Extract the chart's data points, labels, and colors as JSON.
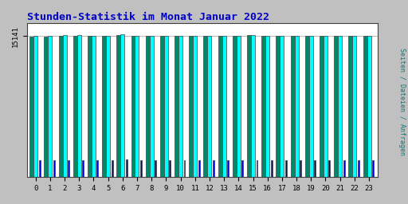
{
  "title": "Stunden-Statistik im Monat Januar 2022",
  "title_color": "#0000cc",
  "title_fontsize": 9.5,
  "ylabel": "Seiten / Dateien / Anfragen",
  "ylabel_color": "#008080",
  "background_color": "#c0c0c0",
  "plot_bg_color": "#ffffff",
  "hours": [
    0,
    1,
    2,
    3,
    4,
    5,
    6,
    7,
    8,
    9,
    10,
    11,
    12,
    13,
    14,
    15,
    16,
    17,
    18,
    19,
    20,
    21,
    22,
    23
  ],
  "seiten": [
    15141,
    15141,
    15200,
    15200,
    15170,
    15160,
    15280,
    15160,
    15160,
    15140,
    15160,
    15155,
    15155,
    15165,
    15170,
    15260,
    15155,
    15160,
    15185,
    15185,
    15185,
    15175,
    15155,
    15165
  ],
  "dateien": [
    15100,
    15100,
    15160,
    15160,
    15130,
    15120,
    15250,
    15120,
    15120,
    15105,
    15120,
    15115,
    15115,
    15125,
    15130,
    15200,
    15115,
    15120,
    15145,
    15145,
    15145,
    15135,
    15115,
    15125
  ],
  "anfragen": [
    1800,
    1800,
    1850,
    1850,
    1820,
    1800,
    1900,
    1800,
    1810,
    1800,
    1810,
    1800,
    1820,
    1815,
    1820,
    1840,
    1800,
    1810,
    1830,
    1825,
    1825,
    1820,
    1800,
    1815
  ],
  "seiten_color": "#00ffff",
  "dateien_color": "#008868",
  "anfragen_color": "#0000cc",
  "ylim_min": 0,
  "ylim_max": 16500,
  "ytick_val": 15141,
  "ytick_label": "15141",
  "grid_color": "#a0a0a0",
  "border_color": "#404040",
  "bar_gap": 0.12
}
